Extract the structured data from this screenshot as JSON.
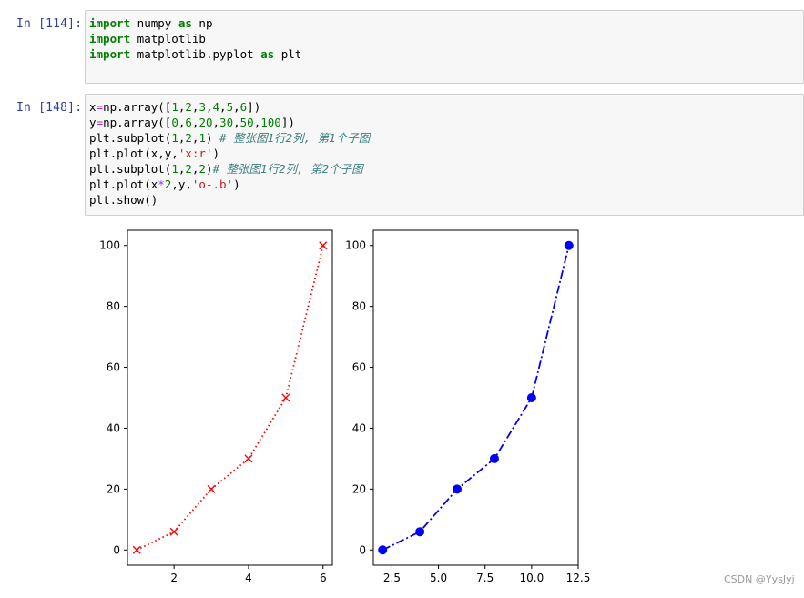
{
  "cells": [
    {
      "prompt": "In  [114]:",
      "lines": [
        [
          {
            "t": "kw",
            "v": "import"
          },
          {
            "t": "",
            "v": " numpy "
          },
          {
            "t": "kw",
            "v": "as"
          },
          {
            "t": "",
            "v": " np"
          }
        ],
        [
          {
            "t": "kw",
            "v": "import"
          },
          {
            "t": "",
            "v": " matplotlib"
          }
        ],
        [
          {
            "t": "kw",
            "v": "import"
          },
          {
            "t": "",
            "v": " matplotlib.pyplot "
          },
          {
            "t": "kw",
            "v": "as"
          },
          {
            "t": "",
            "v": " plt"
          }
        ]
      ]
    },
    {
      "prompt": "In  [148]:",
      "lines": [
        [
          {
            "t": "",
            "v": "x"
          },
          {
            "t": "op",
            "v": "="
          },
          {
            "t": "",
            "v": "np.array(["
          },
          {
            "t": "num",
            "v": "1"
          },
          {
            "t": "",
            "v": ","
          },
          {
            "t": "num",
            "v": "2"
          },
          {
            "t": "",
            "v": ","
          },
          {
            "t": "num",
            "v": "3"
          },
          {
            "t": "",
            "v": ","
          },
          {
            "t": "num",
            "v": "4"
          },
          {
            "t": "",
            "v": ","
          },
          {
            "t": "num",
            "v": "5"
          },
          {
            "t": "",
            "v": ","
          },
          {
            "t": "num",
            "v": "6"
          },
          {
            "t": "",
            "v": "])"
          }
        ],
        [
          {
            "t": "",
            "v": "y"
          },
          {
            "t": "op",
            "v": "="
          },
          {
            "t": "",
            "v": "np.array(["
          },
          {
            "t": "num",
            "v": "0"
          },
          {
            "t": "",
            "v": ","
          },
          {
            "t": "num",
            "v": "6"
          },
          {
            "t": "",
            "v": ","
          },
          {
            "t": "num",
            "v": "20"
          },
          {
            "t": "",
            "v": ","
          },
          {
            "t": "num",
            "v": "30"
          },
          {
            "t": "",
            "v": ","
          },
          {
            "t": "num",
            "v": "50"
          },
          {
            "t": "",
            "v": ","
          },
          {
            "t": "num",
            "v": "100"
          },
          {
            "t": "",
            "v": "])"
          }
        ],
        [
          {
            "t": "",
            "v": "plt.subplot("
          },
          {
            "t": "num",
            "v": "1"
          },
          {
            "t": "",
            "v": ","
          },
          {
            "t": "num",
            "v": "2"
          },
          {
            "t": "",
            "v": ","
          },
          {
            "t": "num",
            "v": "1"
          },
          {
            "t": "",
            "v": ") "
          },
          {
            "t": "cmt",
            "v": "# 整张图1行2列, 第1个子图"
          }
        ],
        [
          {
            "t": "",
            "v": "plt.plot(x,y,"
          },
          {
            "t": "str",
            "v": "'x:r'"
          },
          {
            "t": "",
            "v": ")"
          }
        ],
        [
          {
            "t": "",
            "v": "plt.subplot("
          },
          {
            "t": "num",
            "v": "1"
          },
          {
            "t": "",
            "v": ","
          },
          {
            "t": "num",
            "v": "2"
          },
          {
            "t": "",
            "v": ","
          },
          {
            "t": "num",
            "v": "2"
          },
          {
            "t": "",
            "v": ")"
          },
          {
            "t": "cmt",
            "v": "# 整张图1行2列, 第2个子图"
          }
        ],
        [
          {
            "t": "",
            "v": "plt.plot(x"
          },
          {
            "t": "op",
            "v": "*"
          },
          {
            "t": "num",
            "v": "2"
          },
          {
            "t": "",
            "v": ",y,"
          },
          {
            "t": "str",
            "v": "'o-.b'"
          },
          {
            "t": "",
            "v": ")"
          }
        ],
        [
          {
            "t": "",
            "v": "plt.show()"
          }
        ]
      ]
    }
  ],
  "chart_data": [
    {
      "type": "line",
      "x": [
        1,
        2,
        3,
        4,
        5,
        6
      ],
      "y": [
        0,
        6,
        20,
        30,
        50,
        100
      ],
      "marker": "x",
      "linestyle": "dotted",
      "color": "#ff0000",
      "xlim": [
        0.75,
        6.25
      ],
      "ylim": [
        -5,
        105
      ],
      "xticks": [
        2,
        4,
        6
      ],
      "xtick_labels": [
        "2",
        "4",
        "6"
      ],
      "yticks": [
        0,
        20,
        40,
        60,
        80,
        100
      ],
      "ytick_labels": [
        "0",
        "20",
        "40",
        "60",
        "80",
        "100"
      ]
    },
    {
      "type": "line",
      "x": [
        2,
        4,
        6,
        8,
        10,
        12
      ],
      "y": [
        0,
        6,
        20,
        30,
        50,
        100
      ],
      "marker": "o",
      "linestyle": "dashdot",
      "color": "#0000ff",
      "xlim": [
        1.5,
        12.5
      ],
      "ylim": [
        -5,
        105
      ],
      "xticks": [
        2.5,
        5,
        7.5,
        10,
        12.5
      ],
      "xtick_labels": [
        "2.5",
        "5.0",
        "7.5",
        "10.0",
        "12.5"
      ],
      "yticks": [
        0,
        20,
        40,
        60,
        80,
        100
      ],
      "ytick_labels": [
        "0",
        "20",
        "40",
        "60",
        "80",
        "100"
      ]
    }
  ],
  "watermark": "CSDN @YysJyj"
}
